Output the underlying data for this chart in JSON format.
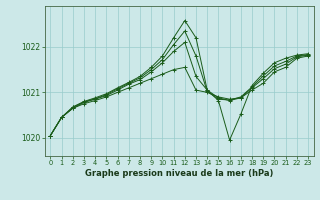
{
  "title": "Graphe pression niveau de la mer (hPa)",
  "bg_color": "#cce8e8",
  "grid_color": "#99cccc",
  "line_color": "#1a5c1a",
  "xlim": [
    -0.5,
    23.5
  ],
  "ylim": [
    1019.6,
    1022.9
  ],
  "yticks": [
    1020,
    1021,
    1022
  ],
  "xticks": [
    0,
    1,
    2,
    3,
    4,
    5,
    6,
    7,
    8,
    9,
    10,
    11,
    12,
    13,
    14,
    15,
    16,
    17,
    18,
    19,
    20,
    21,
    22,
    23
  ],
  "series": [
    [
      1020.05,
      1020.45,
      1020.65,
      1020.75,
      1020.82,
      1020.9,
      1021.0,
      1021.1,
      1021.2,
      1021.3,
      1021.4,
      1021.5,
      1021.55,
      1021.05,
      1021.0,
      1020.9,
      1020.85,
      1020.88,
      1021.05,
      1021.2,
      1021.45,
      1021.55,
      1021.75,
      1021.8
    ],
    [
      1020.05,
      1020.45,
      1020.65,
      1020.78,
      1020.85,
      1020.93,
      1021.05,
      1021.18,
      1021.28,
      1021.45,
      1021.65,
      1021.9,
      1022.1,
      1021.35,
      1021.05,
      1020.88,
      1020.82,
      1020.88,
      1021.1,
      1021.3,
      1021.52,
      1021.62,
      1021.78,
      1021.82
    ],
    [
      1020.05,
      1020.45,
      1020.68,
      1020.8,
      1020.88,
      1020.97,
      1021.1,
      1021.22,
      1021.35,
      1021.55,
      1021.8,
      1022.2,
      1022.58,
      1022.2,
      1021.05,
      1020.82,
      1019.95,
      1020.52,
      1021.15,
      1021.42,
      1021.65,
      1021.75,
      1021.82,
      1021.85
    ],
    [
      1020.05,
      1020.45,
      1020.67,
      1020.79,
      1020.86,
      1020.95,
      1021.08,
      1021.2,
      1021.32,
      1021.5,
      1021.72,
      1022.05,
      1022.35,
      1021.8,
      1021.02,
      1020.85,
      1020.83,
      1020.9,
      1021.12,
      1021.36,
      1021.58,
      1021.68,
      1021.8,
      1021.83
    ]
  ]
}
